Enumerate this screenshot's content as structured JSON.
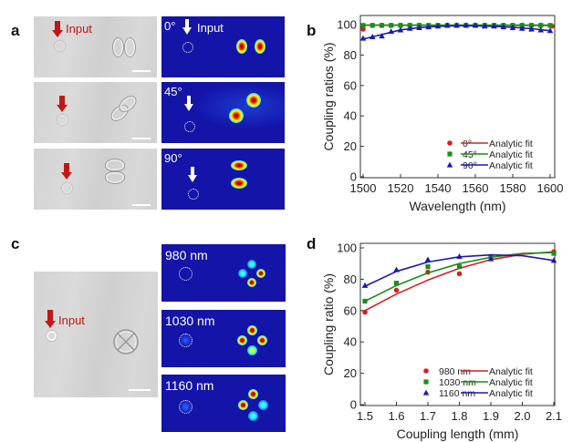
{
  "panels": {
    "a": {
      "label": "a",
      "input_label": "Input",
      "rows": [
        {
          "angle_label": "0°",
          "input_label": "Input"
        },
        {
          "angle_label": "45°"
        },
        {
          "angle_label": "90°"
        }
      ]
    },
    "b": {
      "label": "b"
    },
    "c": {
      "label": "c",
      "input_label": "Input",
      "rows": [
        {
          "wavelength_label": "980 nm"
        },
        {
          "wavelength_label": "1030 nm"
        },
        {
          "wavelength_label": "1160 nm"
        }
      ]
    },
    "d": {
      "label": "d"
    }
  },
  "colors": {
    "red": "#d32020",
    "green": "#1e8c1e",
    "blue": "#1a1ab4",
    "field_bg": "#1414a8"
  },
  "chart_data": [
    {
      "id": "b",
      "type": "line",
      "title": "",
      "xlabel": "Wavelength (nm)",
      "ylabel": "Coupling ratios (%)",
      "xlim": [
        1500,
        1600
      ],
      "ylim": [
        0,
        100
      ],
      "xticks": [
        1500,
        1520,
        1540,
        1560,
        1580,
        1600
      ],
      "yticks": [
        0,
        20,
        40,
        60,
        80,
        100
      ],
      "legend_position": "bottom-right",
      "series": [
        {
          "name": "0°",
          "marker": "circle",
          "color": "#d32020",
          "fit_label": "Analytic fit",
          "x": [
            1500,
            1505,
            1510,
            1515,
            1520,
            1525,
            1530,
            1535,
            1540,
            1545,
            1550,
            1555,
            1560,
            1565,
            1570,
            1575,
            1580,
            1585,
            1590,
            1595,
            1601
          ],
          "y": [
            97,
            99.5,
            99.5,
            99.5,
            99.5,
            99.5,
            99.5,
            99.5,
            99.5,
            99.5,
            99.5,
            99.5,
            99.5,
            99.5,
            99.5,
            99.5,
            99.5,
            99.5,
            99.5,
            99.5,
            99
          ],
          "fit": [
            [
              1500,
              99.6
            ],
            [
              1601,
              99.4
            ]
          ]
        },
        {
          "name": "45°",
          "marker": "square",
          "color": "#1e8c1e",
          "fit_label": "Analytic fit",
          "x": [
            1500,
            1505,
            1510,
            1515,
            1520,
            1525,
            1530,
            1535,
            1540,
            1545,
            1550,
            1555,
            1560,
            1565,
            1570,
            1575,
            1580,
            1585,
            1590,
            1595,
            1600
          ],
          "y": [
            99.5,
            99.5,
            99.5,
            99.5,
            99.5,
            99.5,
            99.5,
            99.5,
            99.5,
            99.5,
            99.5,
            99.5,
            99.5,
            99.5,
            99.5,
            99.5,
            99.5,
            99.5,
            99.5,
            99.5,
            99.5
          ],
          "fit": [
            [
              1500,
              99.7
            ],
            [
              1600,
              99.7
            ]
          ]
        },
        {
          "name": "90°",
          "marker": "triangle",
          "color": "#1a1ab4",
          "fit_label": "Analytic fit",
          "x": [
            1500,
            1505,
            1510,
            1515,
            1520,
            1525,
            1530,
            1535,
            1540,
            1545,
            1550,
            1555,
            1560,
            1565,
            1570,
            1575,
            1580,
            1585,
            1590,
            1595,
            1600
          ],
          "y": [
            91,
            92,
            92.5,
            95.5,
            96.5,
            97.5,
            98,
            98.5,
            99,
            99.5,
            99.5,
            99.5,
            99.5,
            99,
            99,
            98.5,
            98,
            97.5,
            97,
            96.5,
            96
          ],
          "fit": [
            [
              1500,
              90.5
            ],
            [
              1510,
              93.5
            ],
            [
              1520,
              96.5
            ],
            [
              1530,
              98
            ],
            [
              1540,
              98.8
            ],
            [
              1550,
              99.2
            ],
            [
              1560,
              99.2
            ],
            [
              1570,
              98.8
            ],
            [
              1580,
              98.2
            ],
            [
              1590,
              97.3
            ],
            [
              1600,
              96
            ]
          ]
        }
      ]
    },
    {
      "id": "d",
      "type": "line",
      "title": "",
      "xlabel": "Coupling length (mm)",
      "ylabel": "Coupling ratio (%)",
      "xlim": [
        1.5,
        2.1
      ],
      "ylim": [
        0,
        100
      ],
      "xticks": [
        1.5,
        1.6,
        1.7,
        1.8,
        1.9,
        2.0,
        2.1
      ],
      "yticks": [
        0,
        20,
        40,
        60,
        80,
        100
      ],
      "legend_position": "bottom-right",
      "series": [
        {
          "name": "980 nm",
          "marker": "circle",
          "color": "#d32020",
          "fit_label": "Analytic fit",
          "x": [
            1.5,
            1.6,
            1.7,
            1.8,
            2.1
          ],
          "y": [
            59,
            73,
            84.5,
            83.5,
            97.5
          ],
          "fit": [
            [
              1.5,
              60
            ],
            [
              1.6,
              70.5
            ],
            [
              1.7,
              79.5
            ],
            [
              1.8,
              87
            ],
            [
              1.9,
              92.5
            ],
            [
              2.0,
              96
            ],
            [
              2.1,
              97.5
            ]
          ]
        },
        {
          "name": "1030 nm",
          "marker": "square",
          "color": "#1e8c1e",
          "fit_label": "Analytic fit",
          "x": [
            1.5,
            1.6,
            1.7,
            1.8,
            1.9,
            2.1
          ],
          "y": [
            66,
            77.5,
            88,
            88,
            94.5,
            96.5
          ],
          "fit": [
            [
              1.5,
              66
            ],
            [
              1.6,
              76
            ],
            [
              1.7,
              84
            ],
            [
              1.8,
              90
            ],
            [
              1.9,
              94
            ],
            [
              2.0,
              96.5
            ],
            [
              2.1,
              97
            ]
          ]
        },
        {
          "name": "1160 nm",
          "marker": "triangle",
          "color": "#1a1ab4",
          "fit_label": "Analytic fit",
          "x": [
            1.5,
            1.6,
            1.7,
            1.8,
            1.9,
            2.1
          ],
          "y": [
            76,
            86,
            92.5,
            94.5,
            93,
            92
          ],
          "fit": [
            [
              1.5,
              75.5
            ],
            [
              1.6,
              85
            ],
            [
              1.7,
              91
            ],
            [
              1.8,
              94.3
            ],
            [
              1.9,
              95.5
            ],
            [
              2.0,
              95
            ],
            [
              2.1,
              92
            ]
          ]
        }
      ]
    }
  ]
}
